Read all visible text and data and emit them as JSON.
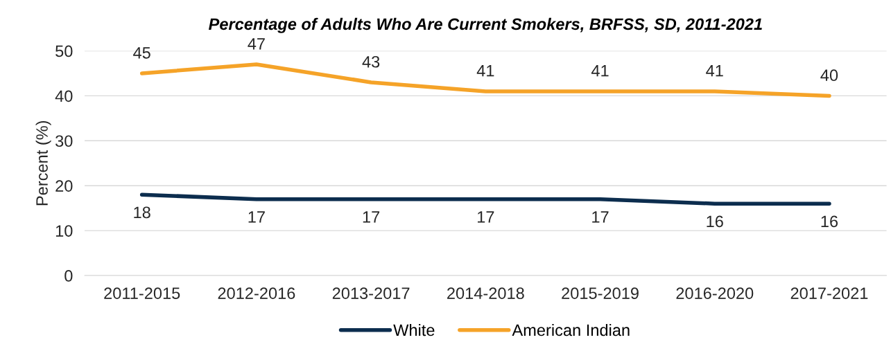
{
  "chart_data": {
    "type": "line",
    "title": "Percentage of Adults Who Are Current Smokers, BRFSS, SD, 2011-2021",
    "ylabel": "Percent (%)",
    "categories": [
      "2011-2015",
      "2012-2016",
      "2013-2017",
      "2014-2018",
      "2015-2019",
      "2016-2020",
      "2017-2021"
    ],
    "series": [
      {
        "name": "White",
        "color": "#0c2d4e",
        "values": [
          18,
          17,
          17,
          17,
          17,
          16,
          16
        ]
      },
      {
        "name": "American Indian",
        "color": "#f5a328",
        "values": [
          45,
          47,
          43,
          41,
          41,
          41,
          40
        ]
      }
    ],
    "ylim": [
      0,
      50
    ],
    "yticks": [
      0,
      10,
      20,
      30,
      40,
      50
    ],
    "grid": "y",
    "legend": "bottom",
    "data_labels": true,
    "marker": "none",
    "line_style": "solid"
  }
}
